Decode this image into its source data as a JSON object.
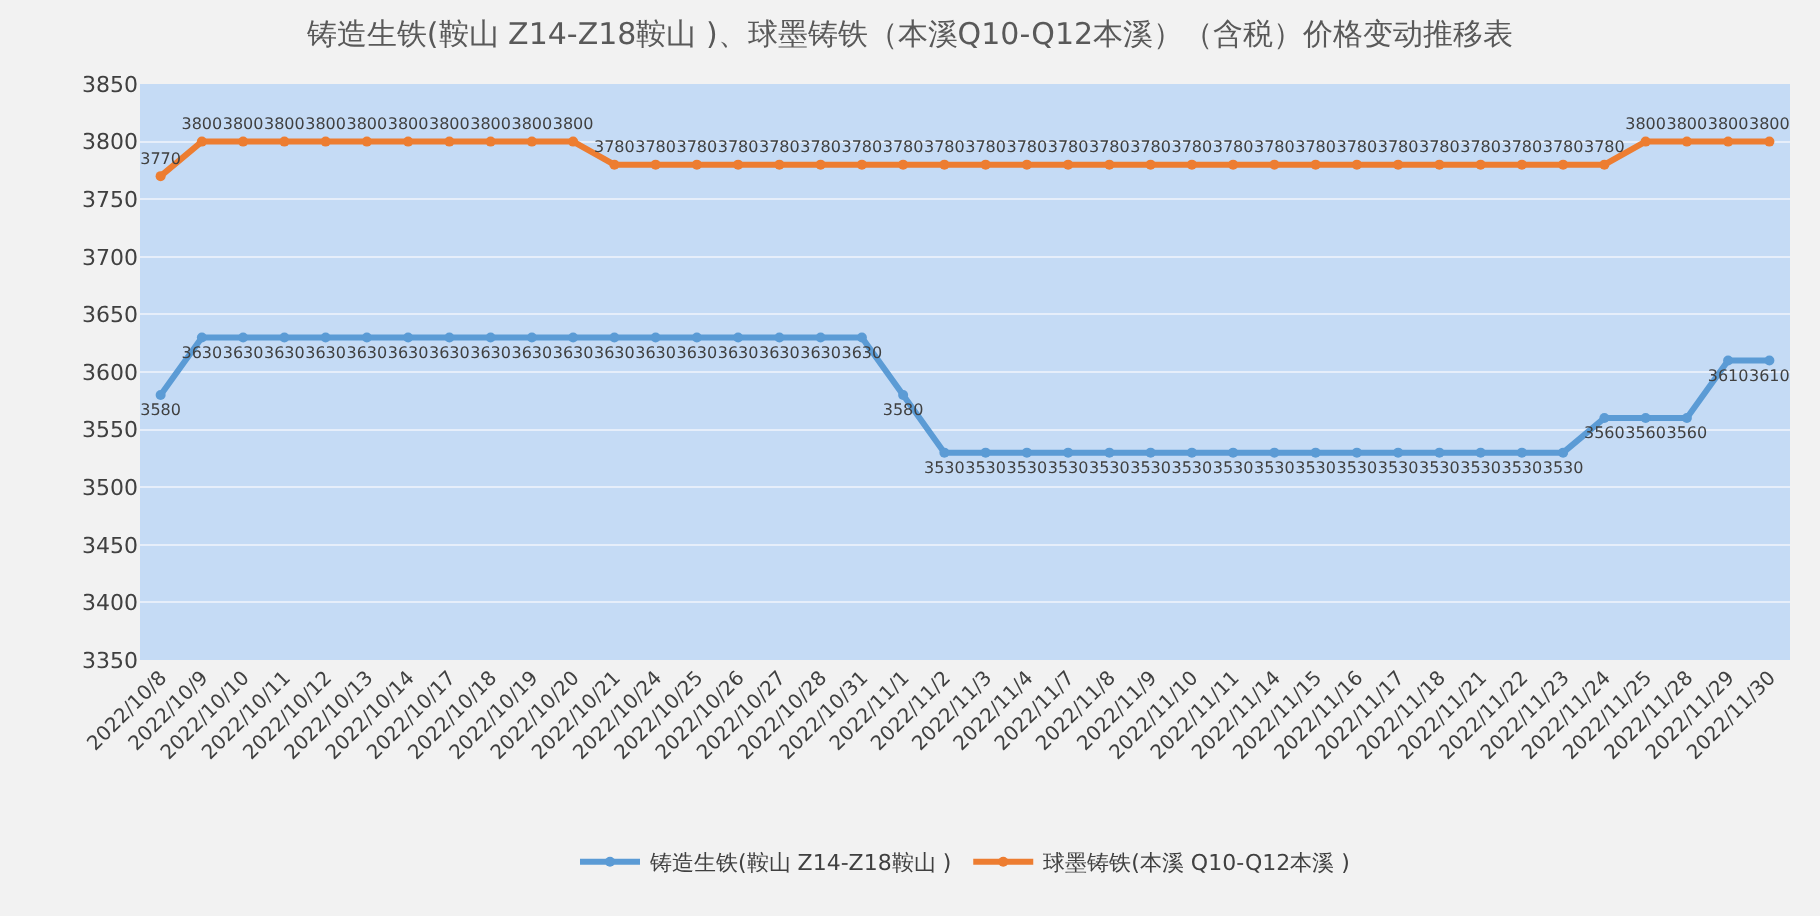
{
  "chart_data": {
    "type": "line",
    "title": "铸造生铁(鞍山 Z14-Z18鞍山 )、球墨铸铁（本溪Q10-Q12本溪）（含税）价格变动推移表",
    "categories": [
      "2022/10/8",
      "2022/10/9",
      "2022/10/10",
      "2022/10/11",
      "2022/10/12",
      "2022/10/13",
      "2022/10/14",
      "2022/10/17",
      "2022/10/18",
      "2022/10/19",
      "2022/10/20",
      "2022/10/21",
      "2022/10/24",
      "2022/10/25",
      "2022/10/26",
      "2022/10/27",
      "2022/10/28",
      "2022/10/31",
      "2022/11/1",
      "2022/11/2",
      "2022/11/3",
      "2022/11/4",
      "2022/11/7",
      "2022/11/8",
      "2022/11/9",
      "2022/11/10",
      "2022/11/11",
      "2022/11/14",
      "2022/11/15",
      "2022/11/16",
      "2022/11/17",
      "2022/11/18",
      "2022/11/21",
      "2022/11/22",
      "2022/11/23",
      "2022/11/24",
      "2022/11/25",
      "2022/11/28",
      "2022/11/29",
      "2022/11/30"
    ],
    "series": [
      {
        "name": "铸造生铁(鞍山 Z14-Z18鞍山 )",
        "color": "#5b9bd5",
        "values": [
          3580,
          3630,
          3630,
          3630,
          3630,
          3630,
          3630,
          3630,
          3630,
          3630,
          3630,
          3630,
          3630,
          3630,
          3630,
          3630,
          3630,
          3630,
          3580,
          3530,
          3530,
          3530,
          3530,
          3530,
          3530,
          3530,
          3530,
          3530,
          3530,
          3530,
          3530,
          3530,
          3530,
          3530,
          3530,
          3560,
          3560,
          3560,
          3610,
          3610
        ]
      },
      {
        "name": "球墨铸铁(本溪 Q10-Q12本溪 )",
        "color": "#ed7d31",
        "values": [
          3770,
          3800,
          3800,
          3800,
          3800,
          3800,
          3800,
          3800,
          3800,
          3800,
          3800,
          3780,
          3780,
          3780,
          3780,
          3780,
          3780,
          3780,
          3780,
          3780,
          3780,
          3780,
          3780,
          3780,
          3780,
          3780,
          3780,
          3780,
          3780,
          3780,
          3780,
          3780,
          3780,
          3780,
          3780,
          3780,
          3800,
          3800,
          3800,
          3800
        ]
      }
    ],
    "ylim": [
      3350,
      3850
    ],
    "yticks": [
      3350,
      3400,
      3450,
      3500,
      3550,
      3600,
      3650,
      3700,
      3750,
      3800,
      3850
    ],
    "data_labels": true,
    "grid": "y",
    "legend": "bottom",
    "marker": "circle",
    "line_style": "solid"
  }
}
